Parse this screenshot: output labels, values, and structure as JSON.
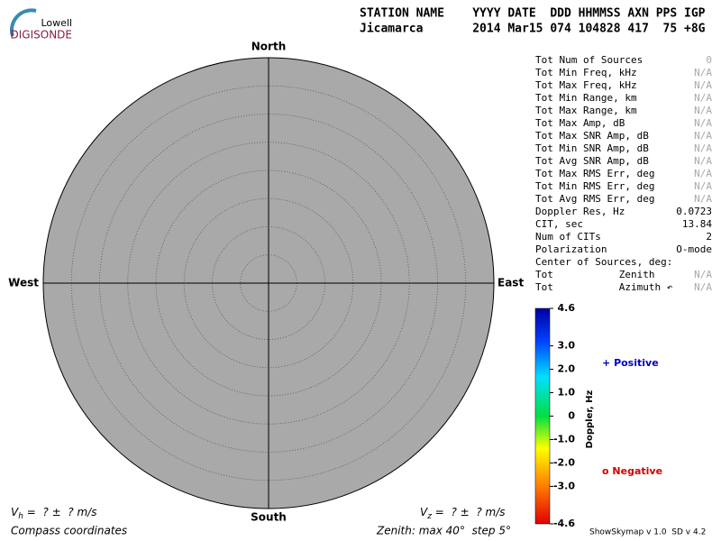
{
  "logo": {
    "top": "Lowell",
    "bottom": "DIGISONDE"
  },
  "header": {
    "labels": "STATION NAME    YYYY DATE  DDD HHMMSS AXN PPS IGP",
    "values": "Jicamarca       2014 Mar15 074 104828 417  75 +8G"
  },
  "skymap": {
    "north": "North",
    "south": "South",
    "east": "East",
    "west": "West"
  },
  "stats": [
    {
      "label": "Tot Num of Sources",
      "value": "0"
    },
    {
      "label": "Tot Min Freq, kHz",
      "value": "N/A"
    },
    {
      "label": "Tot Max Freq, kHz",
      "value": "N/A"
    },
    {
      "label": "Tot Min Range, km",
      "value": "N/A"
    },
    {
      "label": "Tot Max Range, km",
      "value": "N/A"
    },
    {
      "label": "Tot Max Amp, dB",
      "value": "N/A"
    },
    {
      "label": "Tot Max SNR Amp, dB",
      "value": "N/A"
    },
    {
      "label": "Tot Min SNR Amp, dB",
      "value": "N/A"
    },
    {
      "label": "Tot Avg SNR Amp, dB",
      "value": "N/A"
    },
    {
      "label": "Tot Max RMS Err, deg",
      "value": "N/A"
    },
    {
      "label": "Tot Min RMS Err, deg",
      "value": "N/A"
    },
    {
      "label": "Tot Avg RMS Err, deg",
      "value": "N/A"
    },
    {
      "label": "Doppler Res, Hz",
      "value": "0.0723"
    },
    {
      "label": "CIT, sec",
      "value": "13.84"
    },
    {
      "label": "Num of CITs",
      "value": "2"
    },
    {
      "label": "Polarization",
      "value": "O-mode"
    },
    {
      "label": "Center of Sources, deg:"
    },
    {
      "label": "Tot           Zenith",
      "value": "N/A"
    },
    {
      "label": "Tot           Azimuth ↶",
      "value": "N/A"
    }
  ],
  "colorbar": {
    "title": "Doppler, Hz",
    "lim": [
      -4.6,
      4.6
    ],
    "ticks": [
      4.6,
      {
        "value": 3,
        "label": "3.0"
      },
      {
        "value": 2,
        "label": "2.0"
      },
      {
        "value": 1,
        "label": "1.0"
      },
      0,
      {
        "value": -1,
        "label": "-1.0"
      },
      {
        "value": -2,
        "label": "-2.0"
      },
      {
        "value": -3,
        "label": "-3.0"
      },
      -4.6
    ]
  },
  "legend": {
    "positive": {
      "symbol": "+",
      "label": "Positive",
      "color": "#0000c0"
    },
    "negative": {
      "symbol": "o",
      "label": "Negative",
      "color": "#d00000"
    }
  },
  "footer": {
    "vh": {
      "symbol": "V",
      "sub": "h",
      "text": " =  ? ±  ? m/s"
    },
    "vz": {
      "symbol": "V",
      "sub": "z",
      "text": " =  ? ±  ? m/s"
    },
    "coords": "Compass coordinates",
    "zenith": "Zenith: max 40°  step 5°",
    "version": "ShowSkymap v 1.0  SD v 4.2"
  }
}
